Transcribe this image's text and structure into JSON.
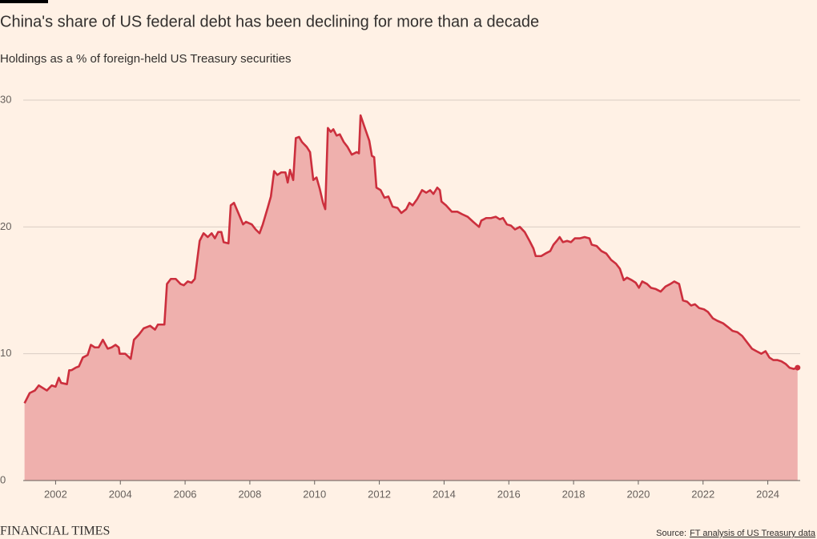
{
  "chart_data": {
    "type": "area",
    "title": "China's share of US federal debt has been declining for more than a decade",
    "subtitle": "Holdings as a % of foreign-held US Treasury securities",
    "brand": "FINANCIAL TIMES",
    "source_label": "Source:",
    "source": "FT analysis of US Treasury data",
    "color": "#cc2f3d",
    "fill_color": "#efb0ad",
    "xlim": [
      2001,
      2025
    ],
    "xticks": [
      2002,
      2004,
      2006,
      2008,
      2010,
      2012,
      2014,
      2016,
      2018,
      2020,
      2022,
      2024
    ],
    "ylim": [
      0,
      30
    ],
    "yticks": [
      0,
      10,
      20,
      30
    ],
    "grid": true,
    "x": [
      2001.04,
      2001.2,
      2001.36,
      2001.48,
      2001.73,
      2001.88,
      2002.0,
      2002.1,
      2002.17,
      2002.35,
      2002.42,
      2002.49,
      2002.62,
      2002.72,
      2002.84,
      2002.99,
      2003.09,
      2003.21,
      2003.33,
      2003.46,
      2003.61,
      2003.73,
      2003.85,
      2003.95,
      2003.98,
      2004.15,
      2004.32,
      2004.42,
      2004.57,
      2004.72,
      2004.92,
      2005.07,
      2005.16,
      2005.36,
      2005.44,
      2005.56,
      2005.71,
      2005.86,
      2005.96,
      2006.08,
      2006.2,
      2006.3,
      2006.45,
      2006.57,
      2006.7,
      2006.82,
      2006.92,
      2007.02,
      2007.12,
      2007.19,
      2007.34,
      2007.41,
      2007.51,
      2007.66,
      2007.79,
      2007.88,
      2008.06,
      2008.18,
      2008.3,
      2008.4,
      2008.55,
      2008.65,
      2008.75,
      2008.85,
      2008.97,
      2009.1,
      2009.17,
      2009.24,
      2009.34,
      2009.42,
      2009.52,
      2009.61,
      2009.76,
      2009.86,
      2009.96,
      2010.06,
      2010.16,
      2010.26,
      2010.33,
      2010.41,
      2010.5,
      2010.58,
      2010.68,
      2010.78,
      2010.9,
      2011.02,
      2011.15,
      2011.3,
      2011.37,
      2011.42,
      2011.54,
      2011.69,
      2011.77,
      2011.84,
      2011.91,
      2012.04,
      2012.16,
      2012.28,
      2012.41,
      2012.56,
      2012.68,
      2012.83,
      2012.93,
      2013.03,
      2013.17,
      2013.32,
      2013.45,
      2013.57,
      2013.67,
      2013.79,
      2013.87,
      2013.92,
      2014.06,
      2014.24,
      2014.41,
      2014.56,
      2014.73,
      2014.9,
      2015.08,
      2015.15,
      2015.3,
      2015.45,
      2015.6,
      2015.72,
      2015.82,
      2015.94,
      2016.07,
      2016.19,
      2016.34,
      2016.49,
      2016.64,
      2016.76,
      2016.83,
      2017.0,
      2017.13,
      2017.28,
      2017.38,
      2017.48,
      2017.57,
      2017.67,
      2017.8,
      2017.92,
      2018.04,
      2018.19,
      2018.34,
      2018.49,
      2018.56,
      2018.71,
      2018.86,
      2019.01,
      2019.16,
      2019.31,
      2019.43,
      2019.55,
      2019.65,
      2019.8,
      2019.92,
      2020.02,
      2020.12,
      2020.27,
      2020.39,
      2020.54,
      2020.69,
      2020.84,
      2020.99,
      2021.11,
      2021.26,
      2021.38,
      2021.51,
      2021.63,
      2021.75,
      2021.88,
      2022.03,
      2022.15,
      2022.3,
      2022.44,
      2022.62,
      2022.77,
      2022.91,
      2023.06,
      2023.21,
      2023.36,
      2023.51,
      2023.65,
      2023.8,
      2023.93,
      2024.05,
      2024.17,
      2024.3,
      2024.42,
      2024.55,
      2024.67,
      2024.8,
      2024.92
    ],
    "values": [
      6.1,
      6.9,
      7.1,
      7.5,
      7.1,
      7.5,
      7.4,
      8.1,
      7.7,
      7.6,
      8.7,
      8.7,
      8.9,
      9.0,
      9.7,
      9.9,
      10.7,
      10.5,
      10.5,
      11.1,
      10.4,
      10.5,
      10.7,
      10.5,
      10.0,
      10.0,
      9.6,
      11.1,
      11.5,
      12.0,
      12.2,
      11.9,
      12.3,
      12.3,
      15.5,
      15.9,
      15.9,
      15.5,
      15.4,
      15.7,
      15.6,
      15.9,
      18.9,
      19.5,
      19.2,
      19.5,
      19.1,
      19.6,
      19.6,
      18.8,
      18.7,
      21.7,
      21.9,
      21.0,
      20.2,
      20.4,
      20.2,
      19.8,
      19.5,
      20.2,
      21.5,
      22.4,
      24.4,
      24.1,
      24.3,
      24.3,
      23.5,
      24.5,
      23.7,
      27.0,
      27.1,
      26.7,
      26.3,
      25.9,
      23.7,
      23.9,
      23.0,
      21.9,
      21.4,
      27.8,
      27.5,
      27.7,
      27.2,
      27.3,
      26.7,
      26.3,
      25.7,
      25.9,
      25.8,
      28.8,
      27.9,
      26.8,
      25.6,
      25.5,
      23.1,
      22.9,
      22.3,
      22.4,
      21.6,
      21.5,
      21.1,
      21.4,
      21.9,
      21.7,
      22.2,
      22.9,
      22.7,
      22.9,
      22.6,
      23.1,
      22.9,
      22.0,
      21.7,
      21.2,
      21.2,
      21.0,
      20.8,
      20.4,
      20.0,
      20.5,
      20.7,
      20.7,
      20.8,
      20.6,
      20.7,
      20.2,
      20.1,
      19.8,
      20.0,
      19.6,
      18.9,
      18.3,
      17.7,
      17.7,
      17.9,
      18.1,
      18.6,
      18.9,
      19.2,
      18.8,
      18.9,
      18.8,
      19.1,
      19.1,
      19.2,
      19.1,
      18.6,
      18.5,
      18.1,
      17.9,
      17.4,
      17.1,
      16.7,
      15.8,
      16.0,
      15.8,
      15.6,
      15.2,
      15.7,
      15.5,
      15.2,
      15.1,
      14.9,
      15.3,
      15.5,
      15.7,
      15.5,
      14.2,
      14.1,
      13.8,
      13.9,
      13.6,
      13.5,
      13.3,
      12.8,
      12.6,
      12.4,
      12.1,
      11.8,
      11.7,
      11.4,
      10.9,
      10.4,
      10.2,
      10.0,
      10.2,
      9.7,
      9.5,
      9.5,
      9.4,
      9.2,
      8.9,
      8.8,
      8.9
    ]
  }
}
